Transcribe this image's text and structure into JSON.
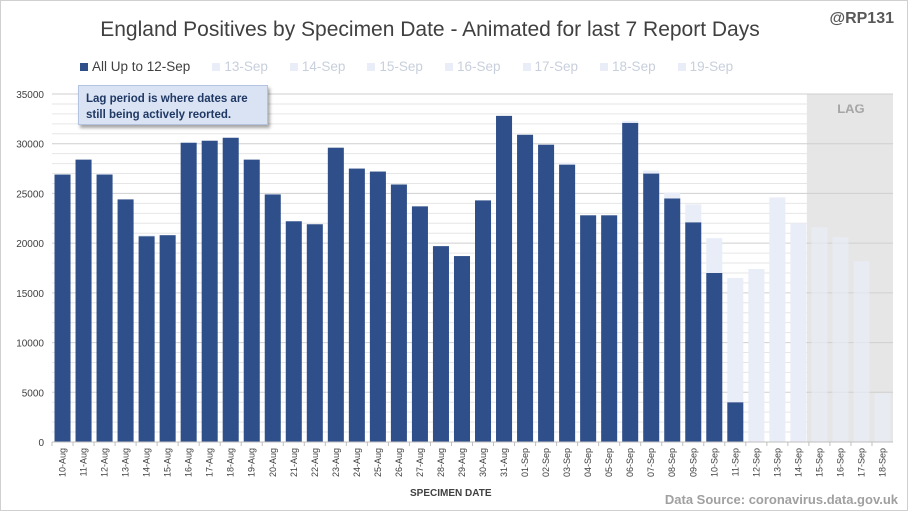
{
  "title": "England Positives by Specimen Date - Animated for last 7 Report Days",
  "handle": "@RP131",
  "callout": [
    "Lag period is where dates are",
    "still being actively  reorted."
  ],
  "lag_label": "LAG",
  "source": "Data Source: coronavirus.data.gov.uk",
  "colors": {
    "primary": "#2f4f8a",
    "later": "#e8edf7",
    "lag_shade": "#e6e6e6"
  },
  "legend": [
    {
      "label": "All Up to 12-Sep",
      "color": "#2f4f8a",
      "text_color": "#404040"
    },
    {
      "label": "13-Sep",
      "color": "#e8edf7",
      "text_color": "#c8cfdc"
    },
    {
      "label": "14-Sep",
      "color": "#e8edf7",
      "text_color": "#c8cfdc"
    },
    {
      "label": "15-Sep",
      "color": "#e8edf7",
      "text_color": "#c8cfdc"
    },
    {
      "label": "16-Sep",
      "color": "#e8edf7",
      "text_color": "#c8cfdc"
    },
    {
      "label": "17-Sep",
      "color": "#e8edf7",
      "text_color": "#c8cfdc"
    },
    {
      "label": "18-Sep",
      "color": "#e8edf7",
      "text_color": "#c8cfdc"
    },
    {
      "label": "19-Sep",
      "color": "#e8edf7",
      "text_color": "#c8cfdc"
    }
  ],
  "chart_data": {
    "type": "bar",
    "stacked": true,
    "title": "England Positives by Specimen Date - Animated for last 7 Report Days",
    "xlabel": "SPECIMEN DATE",
    "ylabel": "",
    "ylim": [
      0,
      35000
    ],
    "yticks": [
      0,
      5000,
      10000,
      15000,
      20000,
      25000,
      30000,
      35000
    ],
    "grid": true,
    "legend_position": "top",
    "lag_range": [
      "15-Sep",
      "18-Sep"
    ],
    "categories": [
      "10-Aug",
      "11-Aug",
      "12-Aug",
      "13-Aug",
      "14-Aug",
      "15-Aug",
      "16-Aug",
      "17-Aug",
      "18-Aug",
      "19-Aug",
      "20-Aug",
      "21-Aug",
      "22-Aug",
      "23-Aug",
      "24-Aug",
      "25-Aug",
      "26-Aug",
      "27-Aug",
      "28-Aug",
      "29-Aug",
      "30-Aug",
      "31-Aug",
      "01-Sep",
      "02-Sep",
      "03-Sep",
      "04-Sep",
      "05-Sep",
      "06-Sep",
      "07-Sep",
      "08-Sep",
      "09-Sep",
      "10-Sep",
      "11-Sep",
      "12-Sep",
      "13-Sep",
      "14-Sep",
      "15-Sep",
      "16-Sep",
      "17-Sep",
      "18-Sep"
    ],
    "series": [
      {
        "name": "All Up to 12-Sep",
        "color": "#2f4f8a",
        "values": [
          26900,
          28400,
          26900,
          24400,
          20700,
          20800,
          30100,
          30300,
          30600,
          28400,
          24900,
          22200,
          21900,
          29600,
          27500,
          27200,
          25900,
          23700,
          19700,
          18700,
          24300,
          32800,
          30900,
          29900,
          27900,
          22800,
          22800,
          32100,
          27000,
          24500,
          22100,
          17000,
          4000,
          0,
          0,
          0,
          0,
          0,
          0,
          0
        ]
      },
      {
        "color": "#e8edf7",
        "values": [
          0,
          0,
          100,
          0,
          100,
          0,
          0,
          0,
          0,
          0,
          0,
          0,
          0,
          0,
          0,
          0,
          0,
          0,
          0,
          0,
          0,
          0,
          0,
          0,
          200,
          0,
          0,
          200,
          300,
          600,
          1800,
          3500,
          12500,
          17400,
          24600,
          22000,
          21600,
          20600,
          18200,
          4900
        ]
      }
    ]
  }
}
